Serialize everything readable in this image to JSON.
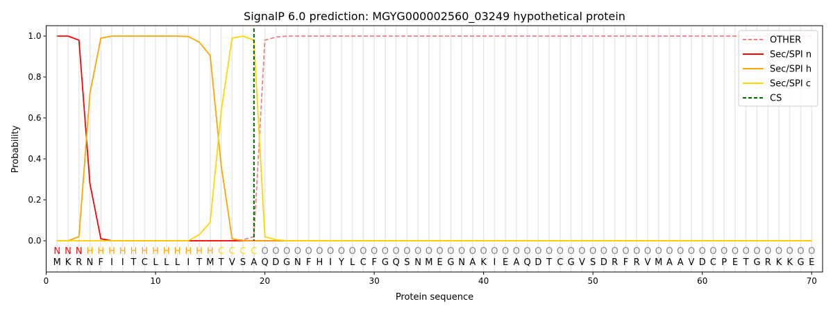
{
  "chart_data": {
    "type": "line",
    "title": "SignalP 6.0 prediction: MGYG000002560_03249 hypothetical protein",
    "xlabel": "Protein sequence",
    "ylabel": "Probability",
    "xlim": [
      0,
      71
    ],
    "ylim": [
      -0.15,
      1.05
    ],
    "xticks": [
      0,
      10,
      20,
      30,
      40,
      50,
      60,
      70
    ],
    "yticks": [
      0.0,
      0.2,
      0.4,
      0.6,
      0.8,
      1.0
    ],
    "legend_position": "top-right",
    "sequence": "MKRNFIITCLLLITMTVSAQDGNFHIYLCFGQSNMEGNAKIEAQDTCGVSDRFRVMAAVDCPETGRKKGE",
    "labels": "NNNHHHHHHHHHHHHCCCCOOOOOOOOOOOOOOOOOOOOOOOOOOOOOOOOOOOOOOOOOOOOOOOOOOO",
    "label_colors": {
      "N": "#ff0000",
      "H": "#ffa500",
      "C": "#ffd700",
      "O": "#808080"
    },
    "cleavage_site": 19,
    "series": [
      {
        "name": "OTHER",
        "color": "#f08080",
        "dash": true,
        "values": [
          0,
          0,
          0,
          0,
          0,
          0,
          0,
          0,
          0,
          0,
          0,
          0,
          0,
          0,
          0,
          0,
          0,
          0.005,
          0.02,
          0.98,
          0.995,
          1
        ]
      },
      {
        "name": "Sec/SPI n",
        "color": "#ff0000",
        "values": [
          1,
          1,
          0.98,
          0.28,
          0.01,
          0,
          0,
          0,
          0,
          0,
          0,
          0,
          0,
          0,
          0,
          0,
          0,
          0,
          0,
          0,
          0,
          0
        ]
      },
      {
        "name": "Sec/SPI h",
        "color": "#ffa500",
        "values": [
          0,
          0,
          0.02,
          0.72,
          0.99,
          1,
          1,
          1,
          1,
          1,
          1,
          1,
          0.998,
          0.97,
          0.905,
          0.37,
          0.01,
          0,
          0,
          0,
          0,
          0
        ]
      },
      {
        "name": "Sec/SPI c",
        "color": "#ffd700",
        "values": [
          0,
          0,
          0,
          0,
          0,
          0,
          0,
          0,
          0,
          0,
          0,
          0,
          0,
          0.03,
          0.09,
          0.63,
          0.99,
          1.0,
          0.98,
          0.02,
          0.005,
          0
        ]
      },
      {
        "name": "CS",
        "color": "#006400",
        "dash": true,
        "values": []
      }
    ]
  }
}
